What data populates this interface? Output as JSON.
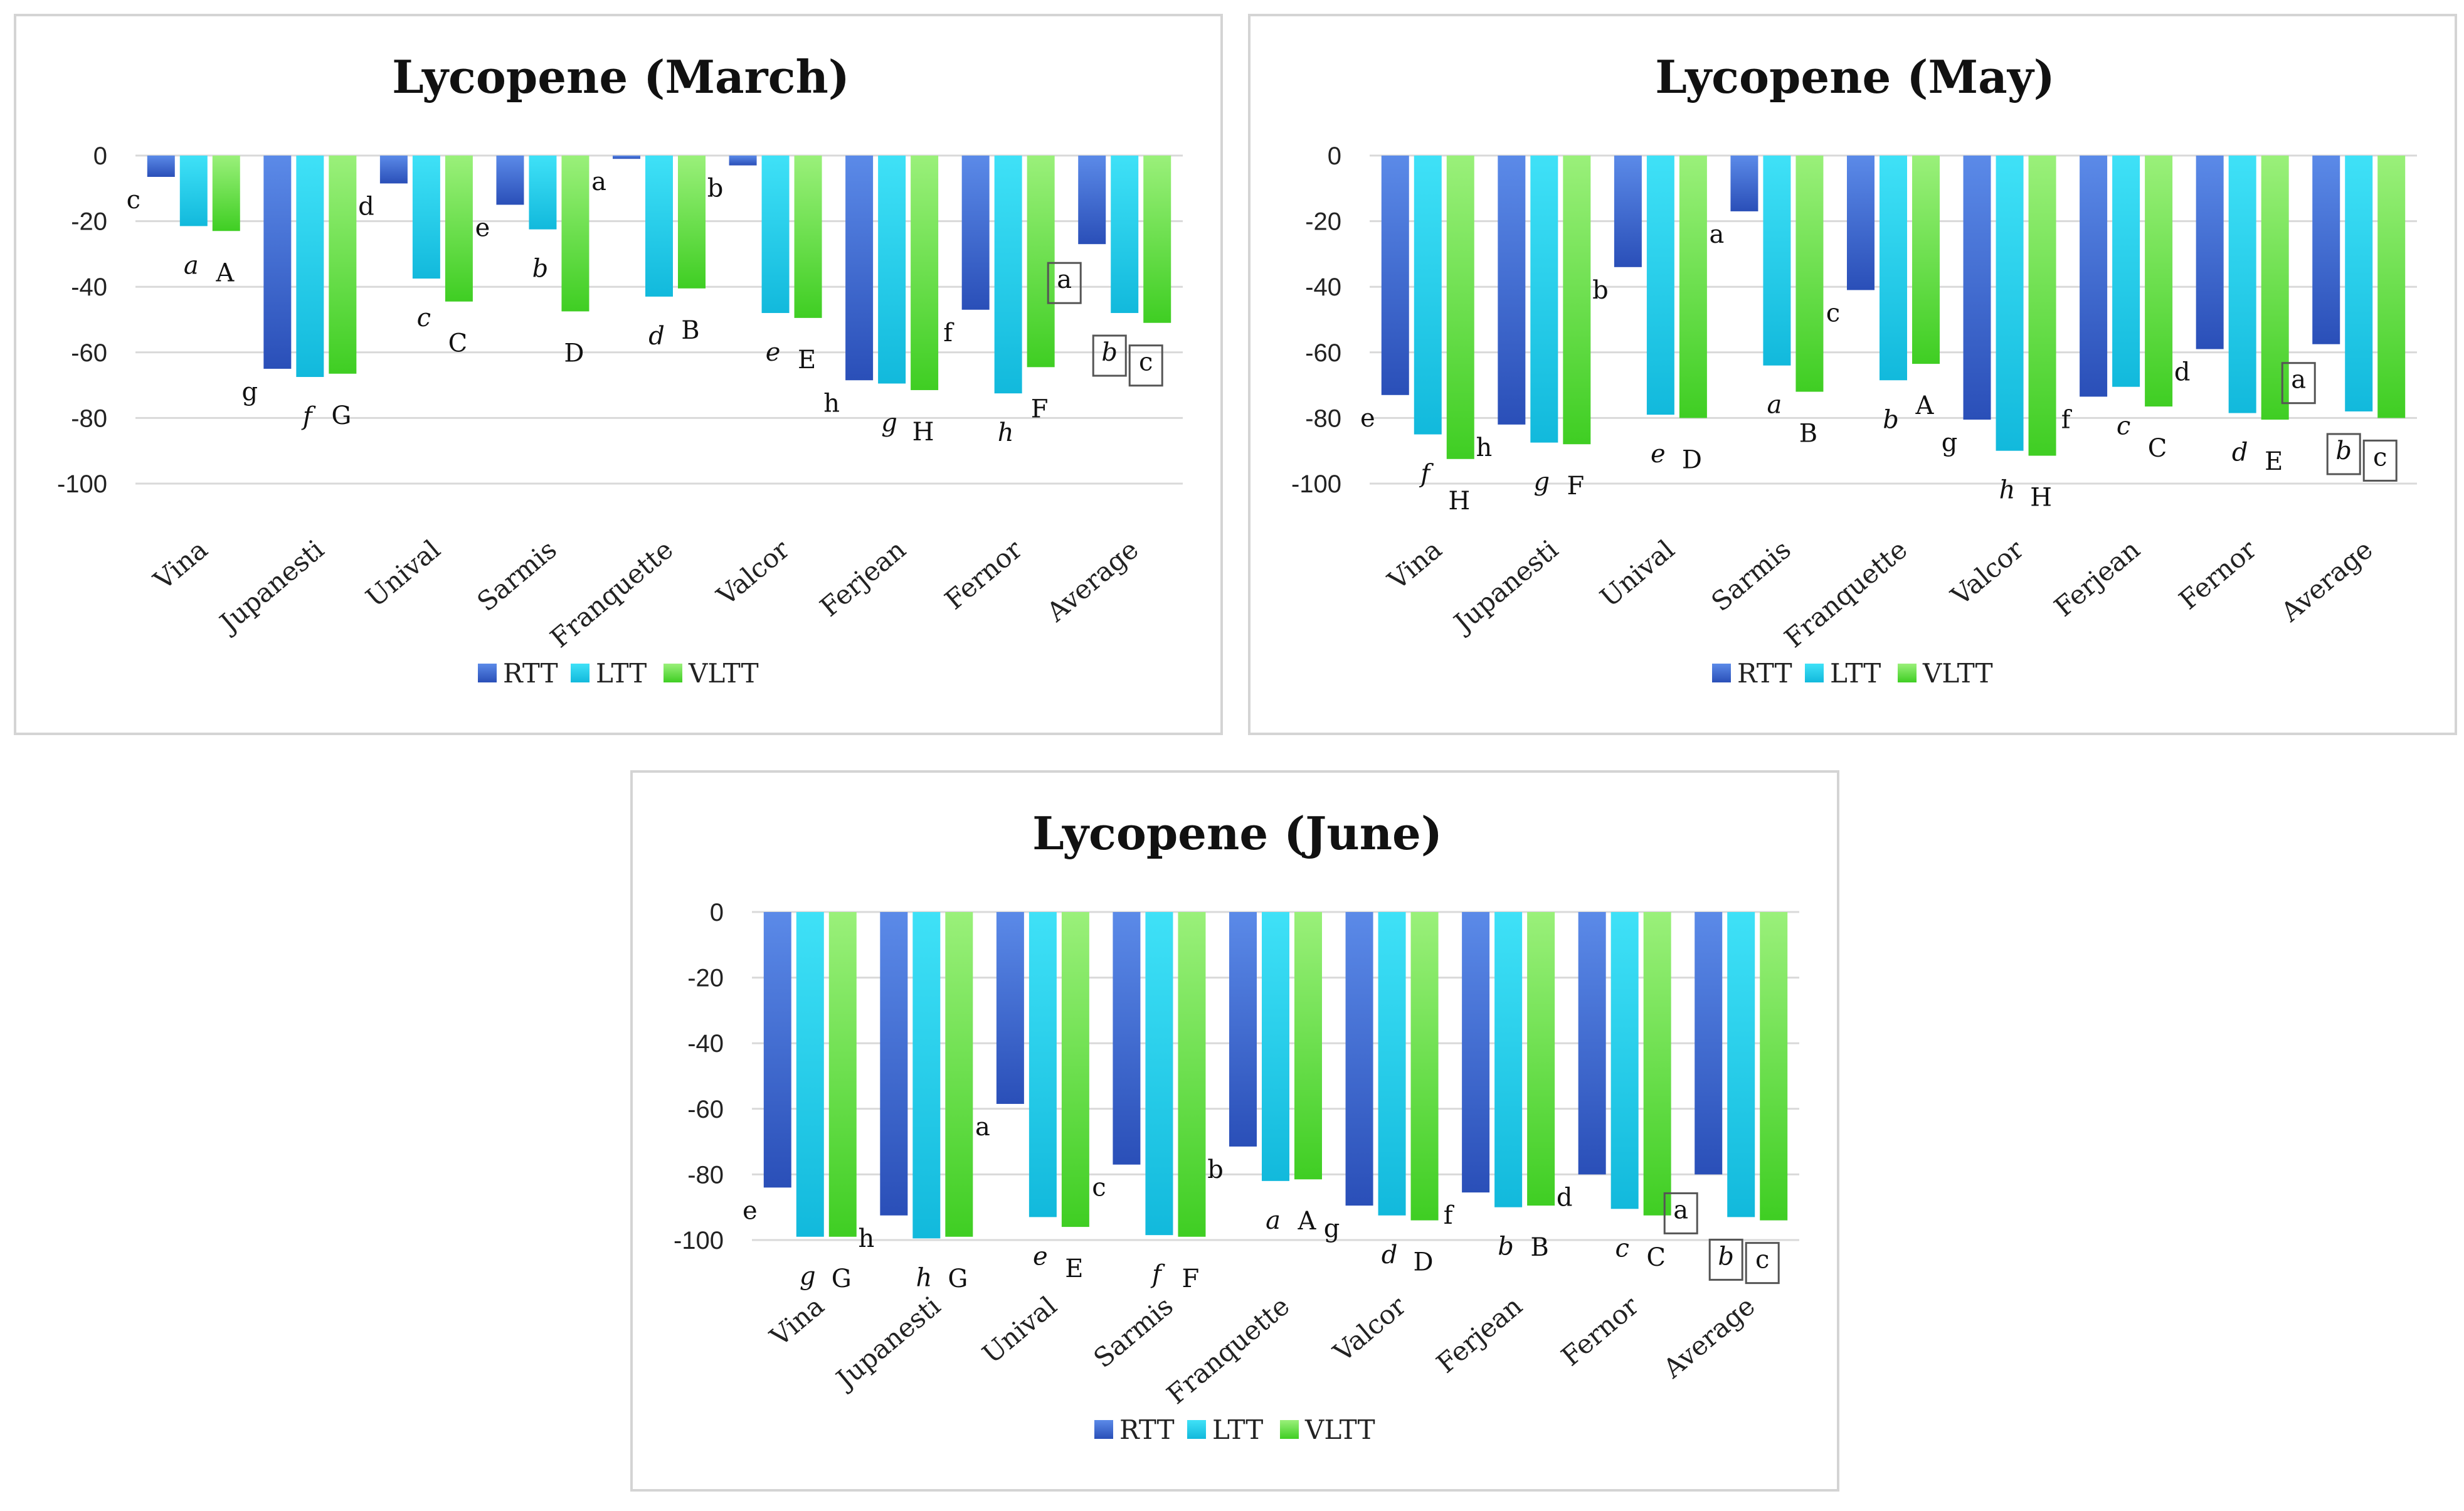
{
  "colors": {
    "RTT_top": "#5b8ae8",
    "RTT_bottom": "#2a4fb8",
    "LTT_top": "#3fe1f7",
    "LTT_bottom": "#12b9dc",
    "VLTT_top": "#9af07a",
    "VLTT_bottom": "#3fce23"
  },
  "chart_data": [
    {
      "id": "march",
      "type": "bar",
      "title": "Lycopene (March)",
      "categories": [
        "Vina",
        "Jupanesti",
        "Unival",
        "Sarmis",
        "Franquette",
        "Valcor",
        "Ferjean",
        "Fernor",
        "Average"
      ],
      "ylim": [
        -100,
        0
      ],
      "yticks": [
        0,
        -20,
        -40,
        -60,
        -80,
        -100
      ],
      "grid": true,
      "legend": "bottom-center",
      "series": [
        {
          "name": "RTT",
          "values": [
            -6.5,
            -65,
            -8.5,
            -15,
            -1,
            -3,
            -68.5,
            -47,
            -27
          ],
          "letters": [
            "c",
            "g",
            "d",
            "e",
            "a",
            "b",
            "h",
            "f",
            "a"
          ]
        },
        {
          "name": "LTT",
          "values": [
            -21.5,
            -67.5,
            -37.5,
            -22.5,
            -43,
            -48,
            -69.5,
            -72.5,
            -48
          ],
          "letters": [
            "a",
            "f",
            "c",
            "b",
            "d",
            "e",
            "g",
            "h",
            "b"
          ]
        },
        {
          "name": "VLTT",
          "values": [
            -23,
            -66.5,
            -44.5,
            -47.5,
            -40.5,
            -49.5,
            -71.5,
            -64.5,
            -51
          ],
          "letters": [
            "A",
            "G",
            "C",
            "D",
            "B",
            "E",
            "H",
            "F",
            "c"
          ]
        }
      ]
    },
    {
      "id": "may",
      "type": "bar",
      "title": "Lycopene (May)",
      "categories": [
        "Vina",
        "Jupanesti",
        "Unival",
        "Sarmis",
        "Franquette",
        "Valcor",
        "Ferjean",
        "Fernor",
        "Average"
      ],
      "ylim": [
        -100,
        0
      ],
      "yticks": [
        0,
        -20,
        -40,
        -60,
        -80,
        -100
      ],
      "grid": true,
      "legend": "bottom-center",
      "series": [
        {
          "name": "RTT",
          "values": [
            -73,
            -82,
            -34,
            -17,
            -41,
            -80.5,
            -73.5,
            -59,
            -57.5
          ],
          "letters": [
            "e",
            "h",
            "b",
            "a",
            "c",
            "g",
            "f",
            "d",
            "a"
          ]
        },
        {
          "name": "LTT",
          "values": [
            -85,
            -87.5,
            -79,
            -64,
            -68.5,
            -90,
            -70.5,
            -78.5,
            -78
          ],
          "letters": [
            "f",
            "g",
            "e",
            "a",
            "b",
            "h",
            "c",
            "d",
            "b"
          ]
        },
        {
          "name": "VLTT",
          "values": [
            -92.5,
            -88,
            -80,
            -72,
            -63.5,
            -91.5,
            -76.5,
            -80.5,
            -80
          ],
          "letters": [
            "H",
            "F",
            "D",
            "B",
            "A",
            "H",
            "C",
            "E",
            "c"
          ]
        }
      ]
    },
    {
      "id": "june",
      "type": "bar",
      "title": "Lycopene (June)",
      "categories": [
        "Vina",
        "Jupanesti",
        "Unival",
        "Sarmis",
        "Franquette",
        "Valcor",
        "Ferjean",
        "Fernor",
        "Average"
      ],
      "ylim": [
        -100,
        0
      ],
      "yticks": [
        0,
        -20,
        -40,
        -60,
        -80,
        -100
      ],
      "grid": true,
      "legend": "bottom-center",
      "series": [
        {
          "name": "RTT",
          "values": [
            -84,
            -92.5,
            -58.5,
            -77,
            -71.5,
            -89.5,
            -85.5,
            -80,
            -80
          ],
          "letters": [
            "e",
            "h",
            "a",
            "c",
            "b",
            "g",
            "f",
            "d",
            "a"
          ]
        },
        {
          "name": "LTT",
          "values": [
            -99,
            -99.5,
            -93,
            -98.5,
            -82,
            -92.5,
            -90,
            -90.5,
            -93
          ],
          "letters": [
            "g",
            "h",
            "e",
            "f",
            "a",
            "d",
            "b",
            "c",
            "b"
          ]
        },
        {
          "name": "VLTT",
          "values": [
            -99,
            -99,
            -96,
            -99,
            -81.5,
            -94,
            -89.5,
            -92.5,
            -94
          ],
          "letters": [
            "G",
            "G",
            "E",
            "F",
            "A",
            "D",
            "B",
            "C",
            "c"
          ]
        }
      ]
    }
  ]
}
